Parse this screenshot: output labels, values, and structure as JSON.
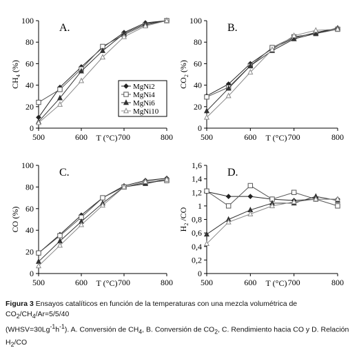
{
  "colors": {
    "series": [
      "#222222",
      "#555555",
      "#333333",
      "#888888"
    ]
  },
  "caption": {
    "label": "Figura 3",
    "line1": "Ensayos catalíticos en función de la temperaturas con una mezcla volumétrica de CO",
    "sub1": "2",
    "mid1": "/CH",
    "sub2": "4",
    "end1": "/Ar=5/5/40",
    "line2a": "(WHSV=30Lg",
    "sup1": "-1",
    "line2b": "h",
    "sup2": "-1",
    "line2c": "). A. Conversión de CH",
    "sub3": "4",
    "line2d": ", B. Conversión de CO",
    "sub4": "2",
    "line2e": ", C. Rendimiento hacia CO y D. Relación H",
    "sub5": "2",
    "line2f": "/CO"
  },
  "chart_data": [
    {
      "type": "line",
      "panel_label": "A.",
      "ylabel": "CH",
      "ylabel_sub": "4",
      "ylabel_unit": "(%)",
      "xlabel": "T (°C)",
      "x": [
        500,
        550,
        600,
        650,
        700,
        750,
        800
      ],
      "xlim": [
        500,
        800
      ],
      "xticks": [
        "500",
        "600",
        "700",
        "800"
      ],
      "ylim": [
        0,
        100
      ],
      "yticks": [
        "0",
        "20",
        "40",
        "60",
        "80",
        "100"
      ],
      "legend": "inside-right",
      "series": [
        {
          "name": "MgNi2",
          "marker": "diamond",
          "values": [
            10,
            38,
            57,
            75,
            89,
            98,
            100
          ]
        },
        {
          "name": "MgNi4",
          "marker": "square",
          "values": [
            24,
            36,
            55,
            76,
            87,
            96,
            100
          ]
        },
        {
          "name": "MgNi6",
          "marker": "triangle-filled",
          "values": [
            6,
            28,
            53,
            72,
            88,
            97,
            100
          ]
        },
        {
          "name": "MgNi10",
          "marker": "triangle-open",
          "values": [
            5,
            22,
            44,
            66,
            85,
            95,
            100
          ]
        }
      ]
    },
    {
      "type": "line",
      "panel_label": "B.",
      "ylabel": "CO",
      "ylabel_sub": "2",
      "ylabel_unit": "(%)",
      "xlabel": "T (°C)",
      "x": [
        500,
        550,
        600,
        650,
        700,
        750,
        800
      ],
      "xlim": [
        500,
        800
      ],
      "xticks": [
        "500",
        "600",
        "700",
        "800"
      ],
      "ylim": [
        0,
        100
      ],
      "yticks": [
        "0",
        "20",
        "40",
        "60",
        "80",
        "100"
      ],
      "series": [
        {
          "name": "MgNi2",
          "marker": "diamond",
          "values": [
            30,
            41,
            60,
            74,
            84,
            89,
            93
          ]
        },
        {
          "name": "MgNi4",
          "marker": "square",
          "values": [
            29,
            38,
            58,
            75,
            85,
            88,
            92
          ]
        },
        {
          "name": "MgNi6",
          "marker": "triangle-filled",
          "values": [
            16,
            37,
            58,
            72,
            83,
            88,
            93
          ]
        },
        {
          "name": "MgNi10",
          "marker": "triangle-open",
          "values": [
            10,
            30,
            52,
            73,
            86,
            91,
            92
          ]
        }
      ]
    },
    {
      "type": "line",
      "panel_label": "C.",
      "ylabel": "CO",
      "ylabel_sub": "",
      "ylabel_unit": "(%)",
      "xlabel": "T (°C)",
      "x": [
        500,
        550,
        600,
        650,
        700,
        750,
        800
      ],
      "xlim": [
        500,
        800
      ],
      "xticks": [
        "500",
        "600",
        "700",
        "800"
      ],
      "ylim": [
        0,
        100
      ],
      "yticks": [
        "0",
        "20",
        "40",
        "60",
        "80",
        "100"
      ],
      "series": [
        {
          "name": "MgNi2",
          "marker": "diamond",
          "values": [
            19,
            36,
            54,
            70,
            81,
            86,
            88
          ]
        },
        {
          "name": "MgNi4",
          "marker": "square",
          "values": [
            19,
            35,
            52,
            70,
            80,
            84,
            86
          ]
        },
        {
          "name": "MgNi6",
          "marker": "triangle-filled",
          "values": [
            11,
            30,
            48,
            65,
            80,
            83,
            87
          ]
        },
        {
          "name": "MgNi10",
          "marker": "triangle-open",
          "values": [
            7,
            26,
            45,
            63,
            80,
            85,
            87
          ]
        }
      ]
    },
    {
      "type": "line",
      "panel_label": "D.",
      "ylabel": "H",
      "ylabel_sub": "2",
      "ylabel_unit": "/CO",
      "xlabel": "T (°C)",
      "x": [
        500,
        550,
        600,
        650,
        700,
        750,
        800
      ],
      "xlim": [
        500,
        800
      ],
      "xticks": [
        "500",
        "600",
        "700",
        "800"
      ],
      "ylim": [
        0,
        1.6
      ],
      "yticks": [
        "0",
        "0,2",
        "0,4",
        "0,6",
        "0,8",
        "1",
        "1,2",
        "1,4",
        "1,6"
      ],
      "series": [
        {
          "name": "MgNi2",
          "marker": "diamond",
          "values": [
            1.21,
            1.14,
            1.14,
            1.1,
            1.08,
            1.1,
            1.1
          ]
        },
        {
          "name": "MgNi4",
          "marker": "square",
          "values": [
            1.22,
            1.0,
            1.3,
            1.1,
            1.2,
            1.1,
            1.0
          ]
        },
        {
          "name": "MgNi6",
          "marker": "triangle-filled",
          "values": [
            0.58,
            0.8,
            0.94,
            1.04,
            1.04,
            1.14,
            1.08
          ]
        },
        {
          "name": "MgNi10",
          "marker": "triangle-open",
          "values": [
            0.44,
            0.76,
            0.88,
            1.0,
            1.06,
            1.1,
            1.1
          ]
        }
      ]
    }
  ]
}
